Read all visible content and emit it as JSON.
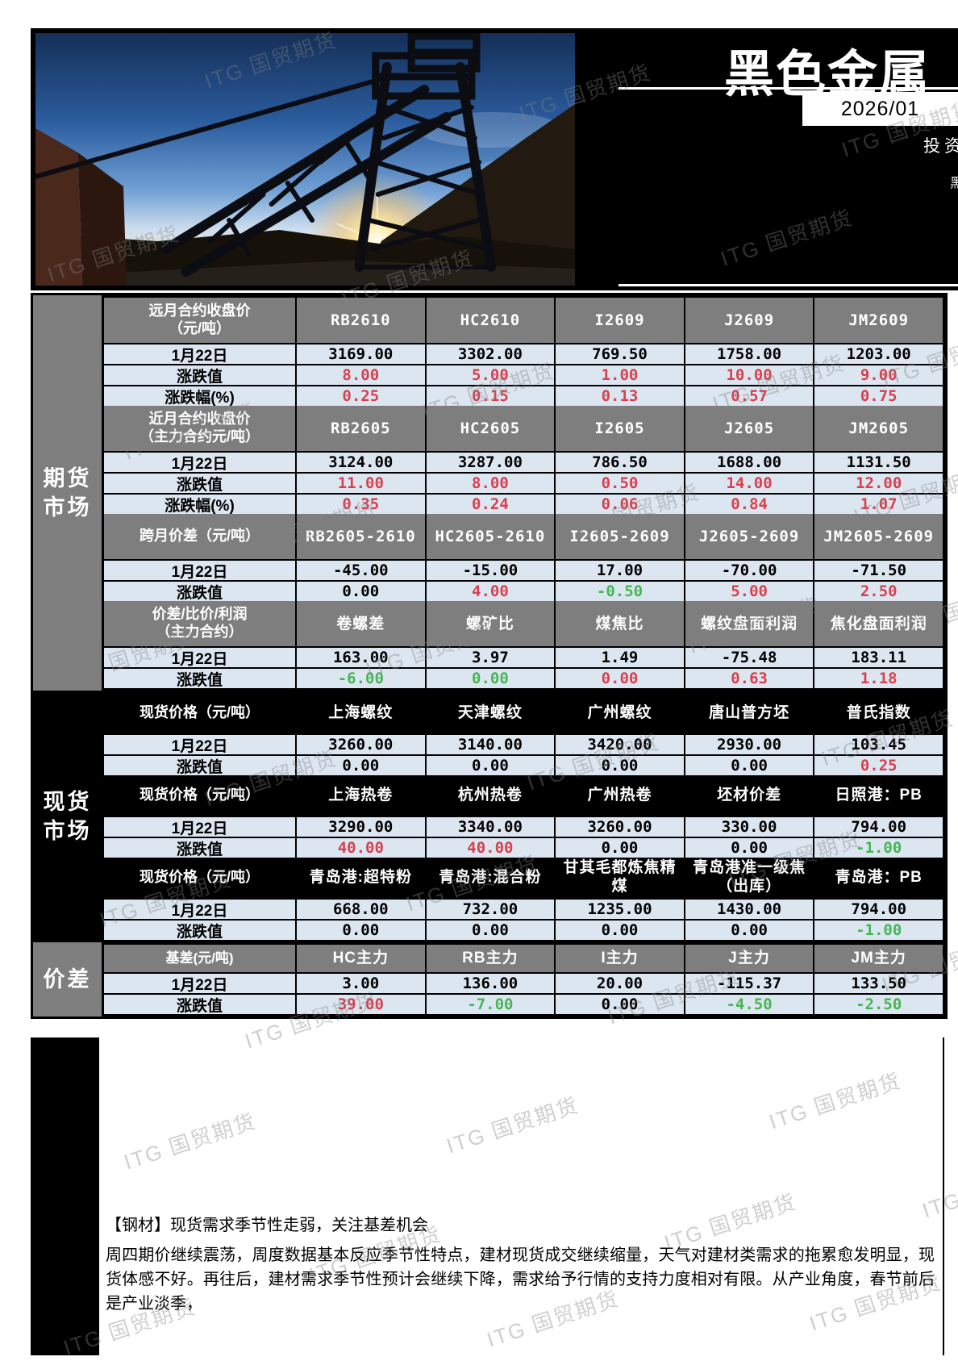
{
  "watermark": {
    "text": "ITG 国贸期货"
  },
  "header": {
    "title": "黑色金属",
    "date": "2026/01",
    "right_text_1": "投资",
    "right_text_2": "黑"
  },
  "colors": {
    "red": "#d7414e",
    "green": "#45b654",
    "header_gray": "#7e7e7e",
    "row_bg": "#dce6f1"
  },
  "sections": [
    {
      "id": "futures",
      "sidebar": {
        "label": "期货市场",
        "theme": "gray"
      },
      "tables": [
        {
          "style": "grid",
          "label_lines": [
            "远月合约收盘价",
            "（元/吨）"
          ],
          "columns": [
            "RB2610",
            "HC2610",
            "I2609",
            "J2609",
            "JM2609"
          ],
          "rows": [
            {
              "label": "1月22日",
              "values": [
                "3169.00",
                "3302.00",
                "769.50",
                "1758.00",
                "1203.00"
              ],
              "colors": [
                "k",
                "k",
                "k",
                "k",
                "k"
              ]
            },
            {
              "label": "涨跌值",
              "values": [
                "8.00",
                "5.00",
                "1.00",
                "10.00",
                "9.00"
              ],
              "colors": [
                "r",
                "r",
                "r",
                "r",
                "r"
              ]
            },
            {
              "label": "涨跌幅(%)",
              "values": [
                "0.25",
                "0.15",
                "0.13",
                "0.57",
                "0.75"
              ],
              "colors": [
                "r",
                "r",
                "r",
                "r",
                "r"
              ]
            }
          ]
        },
        {
          "style": "grid",
          "label_lines": [
            "近月合约收盘价",
            "（主力合约元/吨）"
          ],
          "columns": [
            "RB2605",
            "HC2605",
            "I2605",
            "J2605",
            "JM2605"
          ],
          "rows": [
            {
              "label": "1月22日",
              "values": [
                "3124.00",
                "3287.00",
                "786.50",
                "1688.00",
                "1131.50"
              ],
              "colors": [
                "k",
                "k",
                "k",
                "k",
                "k"
              ]
            },
            {
              "label": "涨跌值",
              "values": [
                "11.00",
                "8.00",
                "0.50",
                "14.00",
                "12.00"
              ],
              "colors": [
                "r",
                "r",
                "r",
                "r",
                "r"
              ]
            },
            {
              "label": "涨跌幅(%)",
              "values": [
                "0.35",
                "0.24",
                "0.06",
                "0.84",
                "1.07"
              ],
              "colors": [
                "r",
                "r",
                "r",
                "r",
                "r"
              ]
            }
          ]
        },
        {
          "style": "grid",
          "label_lines": [
            "跨月价差（元/吨）"
          ],
          "columns": [
            "RB2605-2610",
            "HC2605-2610",
            "I2605-2609",
            "J2605-2609",
            "JM2605-2609"
          ],
          "rows": [
            {
              "label": "1月22日",
              "values": [
                "-45.00",
                "-15.00",
                "17.00",
                "-70.00",
                "-71.50"
              ],
              "colors": [
                "k",
                "k",
                "k",
                "k",
                "k"
              ]
            },
            {
              "label": "涨跌值",
              "values": [
                "0.00",
                "4.00",
                "-0.50",
                "5.00",
                "2.50"
              ],
              "colors": [
                "k",
                "r",
                "g",
                "r",
                "r"
              ]
            }
          ]
        },
        {
          "style": "grid",
          "label_lines": [
            "价差/比价/利润",
            "（主力合约）"
          ],
          "columns": [
            "卷螺差",
            "螺矿比",
            "煤焦比",
            "螺纹盘面利润",
            "焦化盘面利润"
          ],
          "rows": [
            {
              "label": "1月22日",
              "values": [
                "163.00",
                "3.97",
                "1.49",
                "-75.48",
                "183.11"
              ],
              "colors": [
                "k",
                "k",
                "k",
                "k",
                "k"
              ]
            },
            {
              "label": "涨跌值",
              "values": [
                "-6.00",
                "0.00",
                "0.00",
                "0.63",
                "1.18"
              ],
              "colors": [
                "g",
                "g",
                "r",
                "r",
                "r"
              ]
            }
          ]
        }
      ]
    },
    {
      "id": "spot",
      "sidebar": {
        "label": "现货市场",
        "theme": "black"
      },
      "tables": [
        {
          "style": "band",
          "label_lines": [
            "现货价格（元/吨）"
          ],
          "columns": [
            "上海螺纹",
            "天津螺纹",
            "广州螺纹",
            "唐山普方坯",
            "普氏指数"
          ],
          "rows": [
            {
              "label": "1月22日",
              "values": [
                "3260.00",
                "3140.00",
                "3420.00",
                "2930.00",
                "103.45"
              ],
              "colors": [
                "k",
                "k",
                "k",
                "k",
                "k"
              ]
            },
            {
              "label": "涨跌值",
              "values": [
                "0.00",
                "0.00",
                "0.00",
                "0.00",
                "0.25"
              ],
              "colors": [
                "k",
                "k",
                "k",
                "k",
                "r"
              ]
            }
          ]
        },
        {
          "style": "band",
          "label_lines": [
            "现货价格（元/吨）"
          ],
          "columns": [
            "上海热卷",
            "杭州热卷",
            "广州热卷",
            "坯材价差",
            "日照港：PB"
          ],
          "rows": [
            {
              "label": "1月22日",
              "values": [
                "3290.00",
                "3340.00",
                "3260.00",
                "330.00",
                "794.00"
              ],
              "colors": [
                "k",
                "k",
                "k",
                "k",
                "k"
              ]
            },
            {
              "label": "涨跌值",
              "values": [
                "40.00",
                "40.00",
                "0.00",
                "0.00",
                "-1.00"
              ],
              "colors": [
                "r",
                "r",
                "k",
                "k",
                "g"
              ]
            }
          ]
        },
        {
          "style": "band",
          "label_lines": [
            "现货价格（元/吨）"
          ],
          "columns": [
            "青岛港:超特粉",
            "青岛港:混合粉",
            "甘其毛都炼焦精煤",
            "青岛港准一级焦（出库）",
            "青岛港：PB"
          ],
          "rows": [
            {
              "label": "1月22日",
              "values": [
                "668.00",
                "732.00",
                "1235.00",
                "1430.00",
                "794.00"
              ],
              "colors": [
                "k",
                "k",
                "k",
                "k",
                "k"
              ]
            },
            {
              "label": "涨跌值",
              "values": [
                "0.00",
                "0.00",
                "0.00",
                "0.00",
                "-1.00"
              ],
              "colors": [
                "k",
                "k",
                "k",
                "k",
                "g"
              ]
            }
          ]
        }
      ]
    },
    {
      "id": "basis",
      "sidebar": {
        "label": "价差",
        "theme": "gray"
      },
      "tables": [
        {
          "style": "grid-slim",
          "label_lines": [
            "基差(元/吨)"
          ],
          "columns": [
            "HC主力",
            "RB主力",
            "I主力",
            "J主力",
            "JM主力"
          ],
          "rows": [
            {
              "label": "1月22日",
              "values": [
                "3.00",
                "136.00",
                "20.00",
                "-115.37",
                "133.50"
              ],
              "colors": [
                "k",
                "k",
                "k",
                "k",
                "k"
              ]
            },
            {
              "label": "涨跌值",
              "values": [
                "39.00",
                "-7.00",
                "0.00",
                "-4.50",
                "-2.50"
              ],
              "colors": [
                "r",
                "g",
                "k",
                "g",
                "g"
              ]
            }
          ]
        }
      ]
    }
  ],
  "commentary": {
    "title": "【钢材】现货需求季节性走弱，关注基差机会",
    "body_lines": [
      "周四期价继续震荡，周度数据基本反应季节性特点，建材现货成交继续缩量，天气对建材类需求的拖累愈发明显，现货体感不好。再往后，建材需求季节性预计会继续下降，需求给予行情的支持力度相对有限。从产业角度，春节前后是产业淡季，"
    ]
  }
}
